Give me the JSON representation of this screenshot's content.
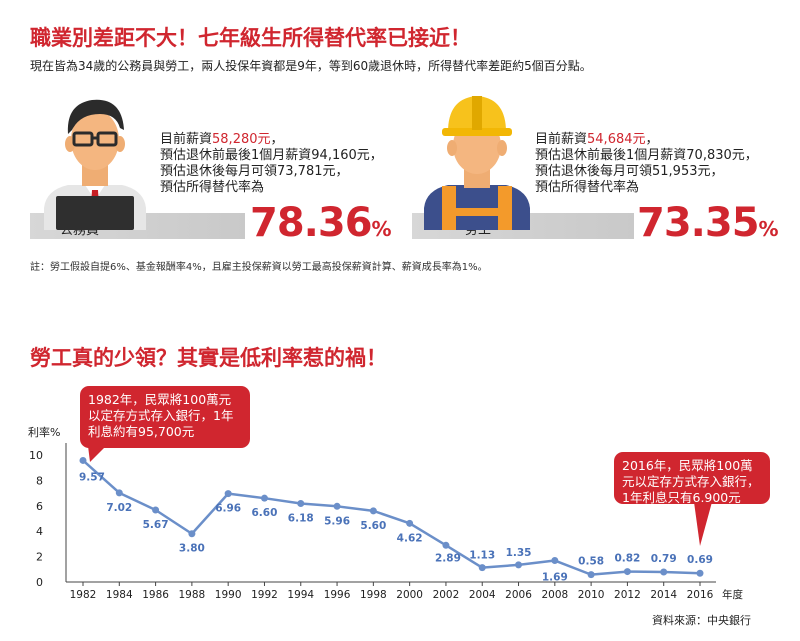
{
  "header": {
    "title": "職業別差距不大！七年級生所得替代率已接近！",
    "subtitle": "現在皆為34歲的公務員與勞工，兩人投保年資都是9年，等到60歲退休時，所得替代率差距約5個百分點。"
  },
  "civil_servant": {
    "label": "公務員",
    "line1_prefix": "目前薪資",
    "line1_value": "58,280元",
    "line1_suffix": "，",
    "line2": "預估退休前最後1個月薪資94,160元，",
    "line3": "預估退休後每月可領73,781元，",
    "line4": "預估所得替代率為",
    "rate": "78.36",
    "rate_unit": "%"
  },
  "worker": {
    "label": "勞工",
    "line1_prefix": "目前薪資",
    "line1_value": "54,684元",
    "line1_suffix": "，",
    "line2": "預估退休前最後1個月薪資70,830元，",
    "line3": "預估退休後每月可領51,953元，",
    "line4": "預估所得替代率為",
    "rate": "73.35",
    "rate_unit": "%"
  },
  "note": "註：勞工假設自提6%、基金報酬率4%，且雇主投保薪資以勞工最高投保薪資計算、薪資成長率為1%。",
  "section2_title": "勞工真的少領？其實是低利率惹的禍！",
  "callout_1982": "1982年，民眾將100萬元以定存方式存入銀行，1年利息約有95,700元",
  "callout_2016": "2016年，民眾將100萬元以定存方式存入銀行，1年利息只有6,900元",
  "source": "資料來源：中央銀行",
  "colors": {
    "accent": "#d0262f",
    "line": "#6b8fc9",
    "label": "#4a72b8"
  },
  "icons": {
    "civil_servant": "businessman-icon",
    "worker": "construction-worker-icon"
  },
  "chart_data": {
    "type": "line",
    "ylabel": "利率%",
    "xlabel": "年度",
    "ylim": [
      0,
      10
    ],
    "yticks": [
      0,
      2,
      4,
      6,
      8,
      10
    ],
    "grid": false,
    "x": [
      1982,
      1984,
      1986,
      1988,
      1990,
      1992,
      1994,
      1996,
      1998,
      2000,
      2002,
      2004,
      2006,
      2008,
      2010,
      2012,
      2014,
      2016
    ],
    "values": [
      9.57,
      7.02,
      5.67,
      3.8,
      6.96,
      6.6,
      6.18,
      5.96,
      5.6,
      4.62,
      2.89,
      1.13,
      1.35,
      1.69,
      0.58,
      0.82,
      0.79,
      0.69
    ],
    "data_labels": [
      "9.57",
      "7.02",
      "5.67",
      "3.80",
      "6.96",
      "6.60",
      "6.18",
      "5.96",
      "5.60",
      "4.62",
      "2.89",
      "1.13",
      "1.35",
      "1.69",
      "0.58",
      "0.82",
      "0.79",
      "0.69"
    ]
  }
}
